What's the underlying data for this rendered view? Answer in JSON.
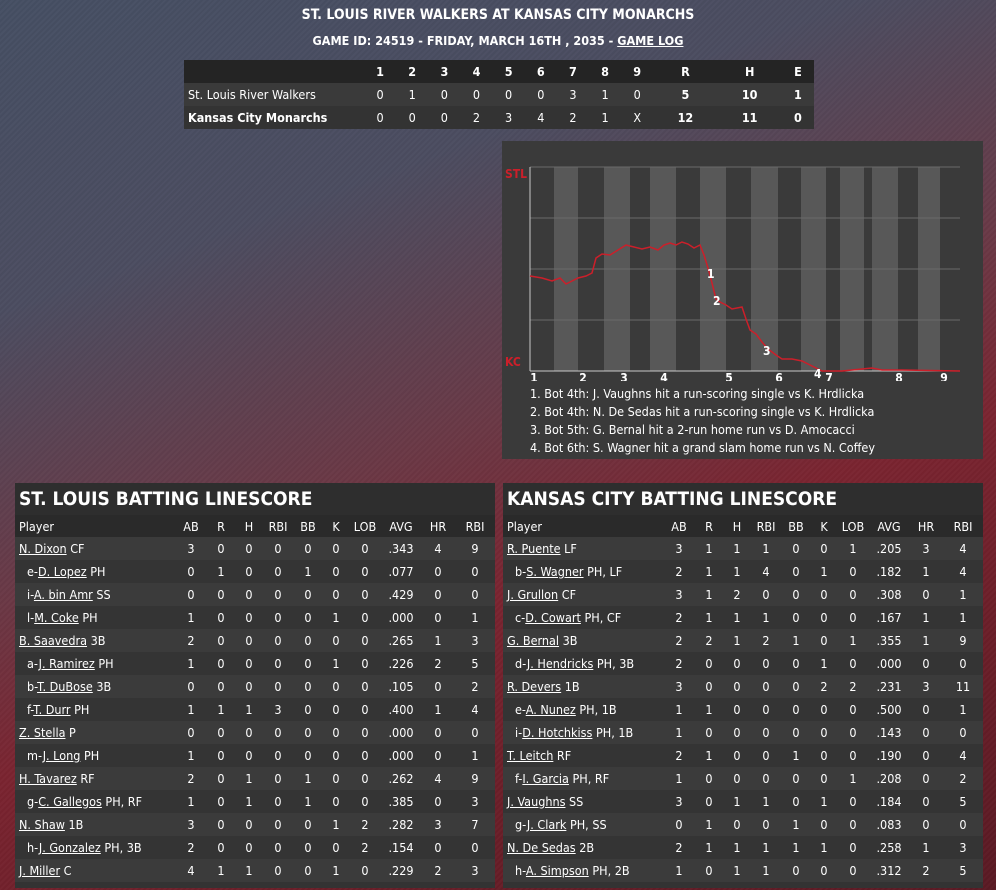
{
  "header": {
    "title": "ST. LOUIS RIVER WALKERS AT KANSAS CITY MONARCHS",
    "subtitle": "GAME ID: 24519 - FRIDAY, MARCH 16TH , 2035 - ",
    "game_log_link": "GAME LOG"
  },
  "linescore": {
    "columns": [
      "1",
      "2",
      "3",
      "4",
      "5",
      "6",
      "7",
      "8",
      "9",
      "R",
      "H",
      "E"
    ],
    "rows": [
      {
        "team": "St. Louis River Walkers",
        "cells": [
          "0",
          "1",
          "0",
          "0",
          "0",
          "0",
          "3",
          "1",
          "0",
          "5",
          "10",
          "1"
        ]
      },
      {
        "team": "Kansas City Monarchs",
        "cells": [
          "0",
          "0",
          "0",
          "2",
          "3",
          "4",
          "2",
          "1",
          "X",
          "12",
          "11",
          "0"
        ]
      }
    ]
  },
  "win_prob": {
    "top_label": "STL",
    "bottom_label": "KC",
    "innings": [
      "1",
      "2",
      "3",
      "4",
      "5",
      "6",
      "7",
      "8",
      "9"
    ],
    "markers": [
      "1",
      "2",
      "3",
      "4"
    ],
    "notes": [
      "1. Bot 4th: J. Vaughns hit a run-scoring single vs K. Hrdlicka",
      "2. Bot 4th: N. De Sedas hit a run-scoring single vs K. Hrdlicka",
      "3. Bot 5th: G. Bernal hit a 2-run home run vs D. Amocacci",
      "4. Bot 6th: S. Wagner hit a grand slam home run vs N. Coffey"
    ],
    "colors": {
      "line": "#cc1f2a",
      "bg": "#3a3a3a",
      "band": "#5a5a5a"
    }
  },
  "batting": [
    {
      "title": "ST. LOUIS BATTING LINESCORE",
      "headers": [
        "Player",
        "AB",
        "R",
        "H",
        "RBI",
        "BB",
        "K",
        "LOB",
        "AVG",
        "HR",
        "RBI"
      ],
      "rows": [
        {
          "pre": "",
          "name": "N. Dixon",
          "pos": " CF",
          "stats": [
            "3",
            "0",
            "0",
            "0",
            "0",
            "0",
            "0",
            ".343",
            "4",
            "9"
          ]
        },
        {
          "pre": "e-",
          "name": "D. Lopez",
          "pos": " PH",
          "stats": [
            "0",
            "1",
            "0",
            "0",
            "1",
            "0",
            "0",
            ".077",
            "0",
            "0"
          ]
        },
        {
          "pre": "i-",
          "name": "A. bin Amr",
          "pos": " SS",
          "stats": [
            "0",
            "0",
            "0",
            "0",
            "0",
            "0",
            "0",
            ".429",
            "0",
            "0"
          ]
        },
        {
          "pre": "l-",
          "name": "M. Coke",
          "pos": " PH",
          "stats": [
            "1",
            "0",
            "0",
            "0",
            "0",
            "1",
            "0",
            ".000",
            "0",
            "1"
          ]
        },
        {
          "pre": "",
          "name": "B. Saavedra",
          "pos": " 3B",
          "stats": [
            "2",
            "0",
            "0",
            "0",
            "0",
            "0",
            "0",
            ".265",
            "1",
            "3"
          ]
        },
        {
          "pre": "a-",
          "name": "J. Ramirez",
          "pos": " PH",
          "stats": [
            "1",
            "0",
            "0",
            "0",
            "0",
            "1",
            "0",
            ".226",
            "2",
            "5"
          ]
        },
        {
          "pre": "b-",
          "name": "T. DuBose",
          "pos": " 3B",
          "stats": [
            "0",
            "0",
            "0",
            "0",
            "0",
            "0",
            "0",
            ".105",
            "0",
            "2"
          ]
        },
        {
          "pre": "f-",
          "name": "T. Durr",
          "pos": " PH",
          "stats": [
            "1",
            "1",
            "1",
            "3",
            "0",
            "0",
            "0",
            ".400",
            "1",
            "4"
          ]
        },
        {
          "pre": "",
          "name": "Z. Stella",
          "pos": " P",
          "stats": [
            "0",
            "0",
            "0",
            "0",
            "0",
            "0",
            "0",
            ".000",
            "0",
            "0"
          ]
        },
        {
          "pre": "m-",
          "name": "J. Long",
          "pos": " PH",
          "stats": [
            "1",
            "0",
            "0",
            "0",
            "0",
            "0",
            "0",
            ".000",
            "0",
            "1"
          ]
        },
        {
          "pre": "",
          "name": "H. Tavarez",
          "pos": " RF",
          "stats": [
            "2",
            "0",
            "1",
            "0",
            "1",
            "0",
            "0",
            ".262",
            "4",
            "9"
          ]
        },
        {
          "pre": "g-",
          "name": "C. Gallegos",
          "pos": " PH, RF",
          "stats": [
            "1",
            "0",
            "1",
            "0",
            "1",
            "0",
            "0",
            ".385",
            "0",
            "3"
          ]
        },
        {
          "pre": "",
          "name": "N. Shaw",
          "pos": " 1B",
          "stats": [
            "3",
            "0",
            "0",
            "0",
            "0",
            "1",
            "2",
            ".282",
            "3",
            "7"
          ]
        },
        {
          "pre": "h-",
          "name": "J. Gonzalez",
          "pos": " PH, 3B",
          "stats": [
            "2",
            "0",
            "0",
            "0",
            "0",
            "0",
            "2",
            ".154",
            "0",
            "0"
          ]
        },
        {
          "pre": "",
          "name": "J. Miller",
          "pos": " C",
          "stats": [
            "4",
            "1",
            "1",
            "0",
            "0",
            "1",
            "0",
            ".229",
            "2",
            "3"
          ]
        }
      ]
    },
    {
      "title": "KANSAS CITY BATTING LINESCORE",
      "headers": [
        "Player",
        "AB",
        "R",
        "H",
        "RBI",
        "BB",
        "K",
        "LOB",
        "AVG",
        "HR",
        "RBI"
      ],
      "rows": [
        {
          "pre": "",
          "name": "R. Puente",
          "pos": " LF",
          "stats": [
            "3",
            "1",
            "1",
            "1",
            "0",
            "0",
            "1",
            ".205",
            "3",
            "4"
          ]
        },
        {
          "pre": "b-",
          "name": "S. Wagner",
          "pos": " PH, LF",
          "stats": [
            "2",
            "1",
            "1",
            "4",
            "0",
            "1",
            "0",
            ".182",
            "1",
            "4"
          ]
        },
        {
          "pre": "",
          "name": "J. Grullon",
          "pos": " CF",
          "stats": [
            "3",
            "1",
            "2",
            "0",
            "0",
            "0",
            "0",
            ".308",
            "0",
            "1"
          ]
        },
        {
          "pre": "c-",
          "name": "D. Cowart",
          "pos": " PH, CF",
          "stats": [
            "2",
            "1",
            "1",
            "1",
            "0",
            "0",
            "0",
            ".167",
            "1",
            "1"
          ]
        },
        {
          "pre": "",
          "name": "G. Bernal",
          "pos": " 3B",
          "stats": [
            "2",
            "2",
            "1",
            "2",
            "1",
            "0",
            "1",
            ".355",
            "1",
            "9"
          ]
        },
        {
          "pre": "d-",
          "name": "J. Hendricks",
          "pos": " PH, 3B",
          "stats": [
            "2",
            "0",
            "0",
            "0",
            "0",
            "1",
            "0",
            ".000",
            "0",
            "0"
          ]
        },
        {
          "pre": "",
          "name": "R. Devers",
          "pos": " 1B",
          "stats": [
            "3",
            "0",
            "0",
            "0",
            "0",
            "2",
            "2",
            ".231",
            "3",
            "11"
          ]
        },
        {
          "pre": "e-",
          "name": "A. Nunez",
          "pos": " PH, 1B",
          "stats": [
            "1",
            "1",
            "0",
            "0",
            "0",
            "0",
            "0",
            ".500",
            "0",
            "1"
          ]
        },
        {
          "pre": "i-",
          "name": "D. Hotchkiss",
          "pos": " PH, 1B",
          "stats": [
            "1",
            "0",
            "0",
            "0",
            "0",
            "0",
            "0",
            ".143",
            "0",
            "0"
          ]
        },
        {
          "pre": "",
          "name": "T. Leitch",
          "pos": " RF",
          "stats": [
            "2",
            "1",
            "0",
            "0",
            "1",
            "0",
            "0",
            ".190",
            "0",
            "4"
          ]
        },
        {
          "pre": "f-",
          "name": "I. Garcia",
          "pos": " PH, RF",
          "stats": [
            "1",
            "0",
            "0",
            "0",
            "0",
            "0",
            "1",
            ".208",
            "0",
            "2"
          ]
        },
        {
          "pre": "",
          "name": "J. Vaughns",
          "pos": " SS",
          "stats": [
            "3",
            "0",
            "1",
            "1",
            "0",
            "1",
            "0",
            ".184",
            "0",
            "5"
          ]
        },
        {
          "pre": "g-",
          "name": "J. Clark",
          "pos": " PH, SS",
          "stats": [
            "0",
            "1",
            "0",
            "0",
            "1",
            "0",
            "0",
            ".083",
            "0",
            "0"
          ]
        },
        {
          "pre": "",
          "name": "N. De Sedas",
          "pos": " 2B",
          "stats": [
            "2",
            "1",
            "1",
            "1",
            "1",
            "1",
            "0",
            ".258",
            "1",
            "3"
          ]
        },
        {
          "pre": "h-",
          "name": "A. Simpson",
          "pos": " PH, 2B",
          "stats": [
            "1",
            "0",
            "1",
            "1",
            "0",
            "0",
            "0",
            ".312",
            "2",
            "5"
          ]
        }
      ]
    }
  ]
}
